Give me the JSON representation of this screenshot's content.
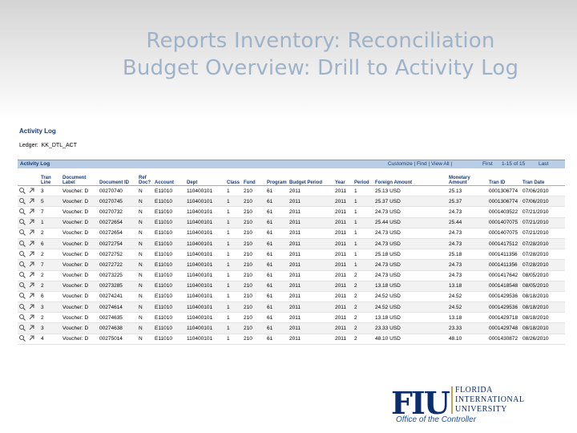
{
  "slide": {
    "title_line1": "Reports Inventory: Reconciliation",
    "title_line2": "Budget Overview: Drill to Activity Log"
  },
  "page": {
    "heading": "Activity Log",
    "ledger_label": "Ledger:",
    "ledger_value": "KK_DTL_ACT"
  },
  "grid": {
    "title": "Activity Log",
    "toolbar": "Customize | Find | View All |",
    "first": "First",
    "range": "1-15 of 15",
    "last": "Last"
  },
  "table": {
    "headers": [
      "Tran Line",
      "Document Label",
      "Document ID",
      "Ref Doc?",
      "Account",
      "Dept",
      "Class",
      "Fund",
      "Program",
      "Budget Period",
      "Year",
      "Period",
      "Foreign Amount",
      "Monetary Amount",
      "Tran ID",
      "Tran Date"
    ],
    "rows": [
      [
        "3",
        "Voucher: D",
        "00270740",
        "N",
        "E11010",
        "110400101",
        "1",
        "210",
        "61",
        "2011",
        "2011",
        "1",
        "25.13 USD",
        "25.13",
        "0001306774",
        "07/06/2010"
      ],
      [
        "5",
        "Voucher: D",
        "00270745",
        "N",
        "E11010",
        "110400101",
        "1",
        "210",
        "61",
        "2011",
        "2011",
        "1",
        "25.37 USD",
        "25.37",
        "0001306774",
        "07/06/2010"
      ],
      [
        "7",
        "Voucher: D",
        "00270732",
        "N",
        "E11010",
        "110400101",
        "1",
        "210",
        "61",
        "2011",
        "2011",
        "1",
        "24.73 USD",
        "24.73",
        "0001403522",
        "07/21/2010"
      ],
      [
        "1",
        "Voucher: D",
        "00272654",
        "N",
        "E11010",
        "110400101",
        "1",
        "210",
        "61",
        "2011",
        "2011",
        "1",
        "25.44 USD",
        "25.44",
        "0001407075",
        "07/21/2010"
      ],
      [
        "2",
        "Voucher: D",
        "00272654",
        "N",
        "E11010",
        "110400101",
        "1",
        "210",
        "61",
        "2011",
        "2011",
        "1",
        "24.73 USD",
        "24.73",
        "0001407075",
        "07/21/2010"
      ],
      [
        "6",
        "Voucher: D",
        "00272754",
        "N",
        "E11010",
        "110400101",
        "1",
        "210",
        "61",
        "2011",
        "2011",
        "1",
        "24.73 USD",
        "24.73",
        "0001417512",
        "07/28/2010"
      ],
      [
        "2",
        "Voucher: D",
        "00272752",
        "N",
        "E11010",
        "110400101",
        "1",
        "210",
        "61",
        "2011",
        "2011",
        "1",
        "25.18 USD",
        "25.18",
        "0001411356",
        "07/28/2010"
      ],
      [
        "7",
        "Voucher: D",
        "00272722",
        "N",
        "E11010",
        "110400101",
        "1",
        "210",
        "61",
        "2011",
        "2011",
        "1",
        "24.73 USD",
        "24.73",
        "0001411356",
        "07/28/2010"
      ],
      [
        "2",
        "Voucher: D",
        "00273225",
        "N",
        "E11010",
        "110400101",
        "1",
        "210",
        "61",
        "2011",
        "2011",
        "2",
        "24.73 USD",
        "24.73",
        "0001417642",
        "08/05/2010"
      ],
      [
        "2",
        "Voucher: D",
        "00273285",
        "N",
        "E11010",
        "110400101",
        "1",
        "210",
        "61",
        "2011",
        "2011",
        "2",
        "13.18 USD",
        "13.18",
        "0001418548",
        "08/05/2010"
      ],
      [
        "6",
        "Voucher: D",
        "00274241",
        "N",
        "E11010",
        "110400101",
        "1",
        "210",
        "61",
        "2011",
        "2011",
        "2",
        "24.52 USD",
        "24.52",
        "0001429536",
        "08/18/2010"
      ],
      [
        "3",
        "Voucher: D",
        "00274614",
        "N",
        "E11010",
        "110400101",
        "1",
        "210",
        "61",
        "2011",
        "2011",
        "2",
        "24.52 USD",
        "24.52",
        "0001429536",
        "08/18/2010"
      ],
      [
        "2",
        "Voucher: D",
        "00274635",
        "N",
        "E11010",
        "110400101",
        "1",
        "210",
        "61",
        "2011",
        "2011",
        "2",
        "13.18 USD",
        "13.18",
        "0001429718",
        "08/18/2010"
      ],
      [
        "3",
        "Voucher: D",
        "00274638",
        "N",
        "E11010",
        "110400101",
        "1",
        "210",
        "61",
        "2011",
        "2011",
        "2",
        "23.33 USD",
        "23.33",
        "0001429748",
        "08/18/2010"
      ],
      [
        "4",
        "Voucher: D",
        "00275014",
        "N",
        "E11010",
        "110400101",
        "1",
        "210",
        "61",
        "2011",
        "2011",
        "2",
        "48.10 USD",
        "48.10",
        "0001430872",
        "08/26/2010"
      ]
    ]
  },
  "footer": {
    "logo": "FIU",
    "university_line1": "FLORIDA",
    "university_line2": "INTERNATIONAL",
    "university_line3": "UNIVERSITY",
    "office": "Office of the Controller"
  }
}
